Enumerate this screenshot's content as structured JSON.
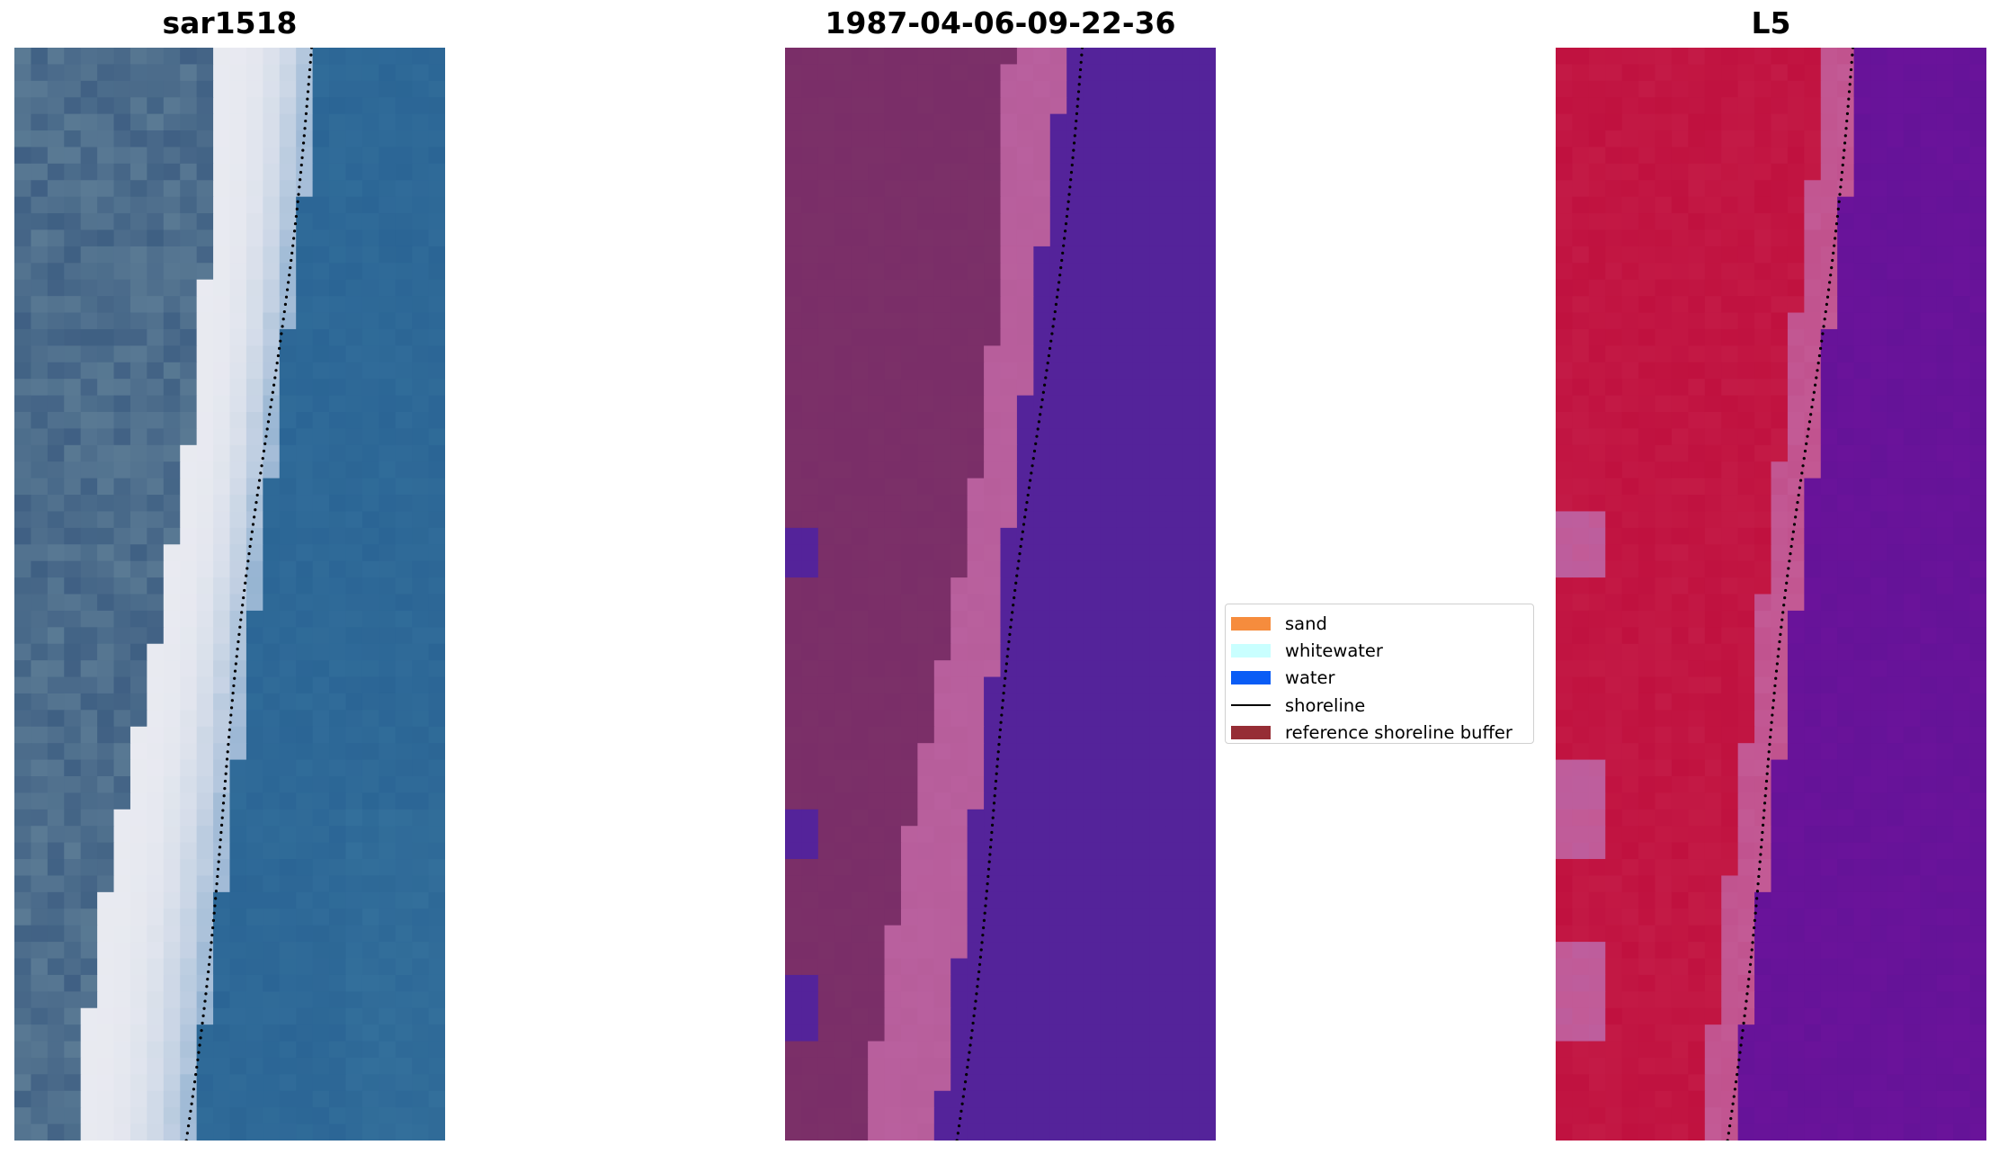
{
  "panels": [
    {
      "title": "sar1518",
      "kind": "rgb-image",
      "cols": 26,
      "rows": 66,
      "shoreline_fraction": [
        0.69,
        0.395
      ]
    },
    {
      "title": "1987-04-06-09-22-36",
      "kind": "classified-image",
      "cols": 26,
      "rows": 66,
      "shoreline_fraction": [
        0.69,
        0.395
      ]
    },
    {
      "title": "L5",
      "kind": "index-image",
      "cols": 26,
      "rows": 66,
      "shoreline_fraction": [
        0.69,
        0.395
      ]
    }
  ],
  "legend": {
    "items": [
      {
        "label": "sand",
        "kind": "patch",
        "color": "#f68c3d"
      },
      {
        "label": "whitewater",
        "kind": "patch",
        "color": "#c9ffff"
      },
      {
        "label": "water",
        "kind": "patch",
        "color": "#0a5cf5"
      },
      {
        "label": "shoreline",
        "kind": "line",
        "color": "#000000"
      },
      {
        "label": "reference shoreline buffer",
        "kind": "patch",
        "color": "#962d35"
      }
    ]
  },
  "colors": {
    "sar_water": "#2b6595",
    "sar_beach": "#e8eaf0",
    "sar_land": "#5a7a94",
    "class_land": "#7a2e68",
    "class_beach": "#b9609e",
    "class_water": "#54239a",
    "index_land": "#c0113f",
    "index_transition": "#c35a95",
    "index_water": "#6a139a"
  }
}
